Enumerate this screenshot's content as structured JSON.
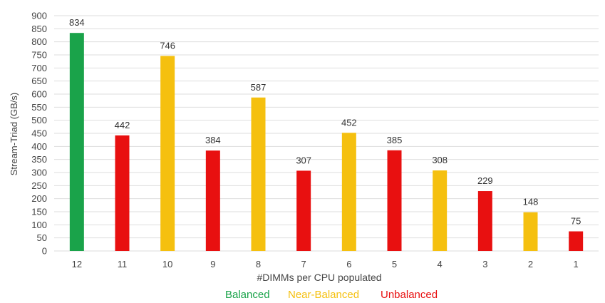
{
  "chart_data": {
    "type": "bar",
    "title": "",
    "xlabel": "#DIMMs per CPU populated",
    "ylabel": "Stream-Triad (GB/s)",
    "ylim": [
      0,
      900
    ],
    "ytick_step": 50,
    "grid": true,
    "categories": [
      "12",
      "11",
      "10",
      "9",
      "8",
      "7",
      "6",
      "5",
      "4",
      "3",
      "2",
      "1"
    ],
    "values": [
      834,
      442,
      746,
      384,
      587,
      307,
      452,
      385,
      308,
      229,
      148,
      75
    ],
    "value_labels": [
      "834",
      "442",
      "746",
      "384",
      "587",
      "307",
      "452",
      "385",
      "308",
      "229",
      "148",
      "75"
    ],
    "classes": [
      "Balanced",
      "Unbalanced",
      "Near-Balanced",
      "Unbalanced",
      "Near-Balanced",
      "Unbalanced",
      "Near-Balanced",
      "Unbalanced",
      "Near-Balanced",
      "Unbalanced",
      "Near-Balanced",
      "Unbalanced"
    ],
    "legend_position": "bottom",
    "legend": [
      {
        "name": "Balanced",
        "color": "#1aa34a"
      },
      {
        "name": "Near-Balanced",
        "color": "#f5c00f"
      },
      {
        "name": "Unbalanced",
        "color": "#e81010"
      }
    ]
  },
  "colors": {
    "grid": "#dedede",
    "axis_text": "#444444"
  }
}
